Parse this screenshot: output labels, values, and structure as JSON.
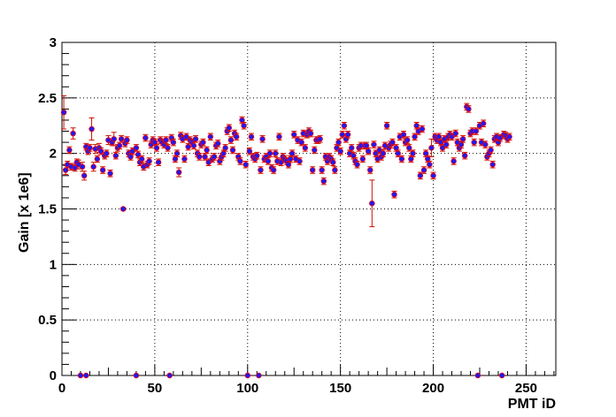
{
  "chart_data": {
    "type": "scatter",
    "title": "",
    "xlabel": "PMT iD",
    "ylabel": "Gain [x 1e6]",
    "xlim": [
      0,
      266
    ],
    "ylim": [
      0,
      3
    ],
    "x_ticks": [
      0,
      50,
      100,
      150,
      200,
      250
    ],
    "x_tick_labels": [
      "0",
      "50",
      "100",
      "150",
      "200",
      "250"
    ],
    "y_ticks": [
      0,
      0.5,
      1,
      1.5,
      2,
      2.5,
      3
    ],
    "y_tick_labels": [
      "0",
      "0.5",
      "1",
      "1.5",
      "2",
      "2.5",
      "3"
    ],
    "grid": true,
    "legend": "none",
    "colors": {
      "marker_fill": "#1a1aff",
      "marker_edge": "#e0001a",
      "error_bar": "#cc1100",
      "grid": "#000000"
    },
    "series": [
      {
        "points": [
          [
            1,
            2.37,
            0.15
          ],
          [
            2,
            1.85,
            0.04
          ],
          [
            3,
            1.9,
            0.03
          ],
          [
            4,
            2.03,
            0.03
          ],
          [
            5,
            1.88,
            0.03
          ],
          [
            6,
            2.18,
            0.05
          ],
          [
            7,
            1.87,
            0.03
          ],
          [
            8,
            1.92,
            0.03
          ],
          [
            9,
            1.9,
            0.04
          ],
          [
            11,
            1.88,
            0.04
          ],
          [
            12,
            1.8,
            0.04
          ],
          [
            13,
            2.06,
            0.03
          ],
          [
            14,
            2.02,
            0.03
          ],
          [
            15,
            2.05,
            0.03
          ],
          [
            16,
            2.22,
            0.1
          ],
          [
            17,
            1.88,
            0.04
          ],
          [
            18,
            2.04,
            0.04
          ],
          [
            19,
            1.95,
            0.03
          ],
          [
            20,
            2.05,
            0.04
          ],
          [
            21,
            2.02,
            0.03
          ],
          [
            22,
            1.85,
            0.03
          ],
          [
            23,
            1.98,
            0.03
          ],
          [
            24,
            2.0,
            0.03
          ],
          [
            25,
            2.12,
            0.04
          ],
          [
            26,
            1.82,
            0.03
          ],
          [
            27,
            2.1,
            0.03
          ],
          [
            28,
            2.13,
            0.06
          ],
          [
            29,
            1.98,
            0.03
          ],
          [
            30,
            2.05,
            0.03
          ],
          [
            31,
            2.07,
            0.03
          ],
          [
            32,
            2.13,
            0.03
          ],
          [
            33,
            1.5,
            0.01
          ],
          [
            34,
            2.09,
            0.03
          ],
          [
            35,
            2.12,
            0.03
          ],
          [
            36,
            2.0,
            0.03
          ],
          [
            37,
            1.97,
            0.03
          ],
          [
            38,
            2.02,
            0.03
          ],
          [
            40,
            2.05,
            0.03
          ],
          [
            41,
            1.99,
            0.03
          ],
          [
            42,
            1.92,
            0.03
          ],
          [
            43,
            1.95,
            0.03
          ],
          [
            44,
            1.88,
            0.03
          ],
          [
            45,
            2.14,
            0.03
          ],
          [
            46,
            1.9,
            0.03
          ],
          [
            47,
            1.93,
            0.03
          ],
          [
            48,
            2.08,
            0.03
          ],
          [
            49,
            2.12,
            0.03
          ],
          [
            50,
            2.1,
            0.03
          ],
          [
            51,
            2.05,
            0.03
          ],
          [
            52,
            1.92,
            0.03
          ],
          [
            53,
            2.12,
            0.03
          ],
          [
            54,
            2.1,
            0.03
          ],
          [
            55,
            2.08,
            0.03
          ],
          [
            56,
            2.12,
            0.03
          ],
          [
            57,
            2.05,
            0.03
          ],
          [
            59,
            2.14,
            0.03
          ],
          [
            60,
            2.1,
            0.03
          ],
          [
            61,
            1.95,
            0.03
          ],
          [
            62,
            2.0,
            0.03
          ],
          [
            63,
            1.83,
            0.04
          ],
          [
            64,
            2.16,
            0.03
          ],
          [
            65,
            2.13,
            0.03
          ],
          [
            66,
            1.95,
            0.03
          ],
          [
            67,
            2.15,
            0.03
          ],
          [
            68,
            2.06,
            0.03
          ],
          [
            69,
            2.12,
            0.03
          ],
          [
            70,
            2.1,
            0.03
          ],
          [
            71,
            2.07,
            0.03
          ],
          [
            72,
            2.13,
            0.03
          ],
          [
            73,
            2.0,
            0.03
          ],
          [
            74,
            1.97,
            0.03
          ],
          [
            75,
            2.08,
            0.03
          ],
          [
            76,
            2.1,
            0.03
          ],
          [
            77,
            1.97,
            0.03
          ],
          [
            78,
            2.03,
            0.03
          ],
          [
            79,
            1.92,
            0.03
          ],
          [
            80,
            2.15,
            0.03
          ],
          [
            81,
            1.95,
            0.03
          ],
          [
            82,
            1.97,
            0.03
          ],
          [
            83,
            2.07,
            0.03
          ],
          [
            84,
            2.09,
            0.03
          ],
          [
            85,
            1.93,
            0.03
          ],
          [
            86,
            1.97,
            0.03
          ],
          [
            87,
            2.0,
            0.03
          ],
          [
            88,
            2.05,
            0.03
          ],
          [
            89,
            2.2,
            0.03
          ],
          [
            90,
            2.23,
            0.03
          ],
          [
            91,
            2.12,
            0.03
          ],
          [
            92,
            2.03,
            0.03
          ],
          [
            93,
            2.18,
            0.03
          ],
          [
            94,
            2.15,
            0.03
          ],
          [
            95,
            1.97,
            0.03
          ],
          [
            96,
            1.93,
            0.03
          ],
          [
            97,
            2.3,
            0.03
          ],
          [
            98,
            2.25,
            0.03
          ],
          [
            99,
            1.9,
            0.03
          ],
          [
            101,
            2.02,
            0.03
          ],
          [
            102,
            2.15,
            0.03
          ],
          [
            103,
            1.97,
            0.03
          ],
          [
            104,
            1.95,
            0.03
          ],
          [
            105,
            1.98,
            0.03
          ],
          [
            107,
            1.85,
            0.03
          ],
          [
            108,
            2.13,
            0.03
          ],
          [
            109,
            1.95,
            0.03
          ],
          [
            110,
            1.97,
            0.03
          ],
          [
            111,
            1.93,
            0.03
          ],
          [
            112,
            2.0,
            0.03
          ],
          [
            113,
            1.87,
            0.03
          ],
          [
            114,
            1.85,
            0.03
          ],
          [
            115,
            2.0,
            0.03
          ],
          [
            116,
            1.93,
            0.03
          ],
          [
            117,
            2.15,
            0.03
          ],
          [
            118,
            1.92,
            0.03
          ],
          [
            119,
            1.97,
            0.03
          ],
          [
            120,
            1.95,
            0.03
          ],
          [
            121,
            1.93,
            0.03
          ],
          [
            122,
            1.9,
            0.03
          ],
          [
            123,
            1.95,
            0.03
          ],
          [
            124,
            2.0,
            0.03
          ],
          [
            125,
            2.17,
            0.03
          ],
          [
            126,
            1.95,
            0.03
          ],
          [
            127,
            2.12,
            0.03
          ],
          [
            128,
            1.93,
            0.03
          ],
          [
            129,
            2.1,
            0.03
          ],
          [
            130,
            2.18,
            0.03
          ],
          [
            131,
            2.05,
            0.03
          ],
          [
            132,
            2.17,
            0.03
          ],
          [
            133,
            2.2,
            0.03
          ],
          [
            134,
            2.18,
            0.03
          ],
          [
            135,
            1.85,
            0.03
          ],
          [
            136,
            2.03,
            0.03
          ],
          [
            137,
            2.12,
            0.03
          ],
          [
            138,
            2.12,
            0.03
          ],
          [
            139,
            2.13,
            0.03
          ],
          [
            140,
            1.85,
            0.03
          ],
          [
            141,
            1.75,
            0.03
          ],
          [
            142,
            1.97,
            0.03
          ],
          [
            143,
            1.93,
            0.03
          ],
          [
            144,
            1.97,
            0.03
          ],
          [
            145,
            1.95,
            0.03
          ],
          [
            146,
            1.92,
            0.03
          ],
          [
            147,
            1.85,
            0.03
          ],
          [
            148,
            2.05,
            0.03
          ],
          [
            149,
            2.1,
            0.03
          ],
          [
            150,
            2.02,
            0.03
          ],
          [
            151,
            2.17,
            0.03
          ],
          [
            152,
            2.25,
            0.03
          ],
          [
            153,
            2.13,
            0.03
          ],
          [
            154,
            2.17,
            0.03
          ],
          [
            155,
            2.0,
            0.03
          ],
          [
            156,
            2.05,
            0.03
          ],
          [
            157,
            1.98,
            0.03
          ],
          [
            158,
            1.93,
            0.03
          ],
          [
            159,
            1.9,
            0.03
          ],
          [
            160,
            2.05,
            0.03
          ],
          [
            161,
            2.07,
            0.03
          ],
          [
            162,
            1.95,
            0.03
          ],
          [
            163,
            2.07,
            0.03
          ],
          [
            164,
            2.07,
            0.03
          ],
          [
            165,
            2.02,
            0.03
          ],
          [
            166,
            1.85,
            0.03
          ],
          [
            167,
            1.55,
            0.21
          ],
          [
            168,
            2.08,
            0.03
          ],
          [
            169,
            2.0,
            0.03
          ],
          [
            170,
            1.95,
            0.03
          ],
          [
            171,
            2.03,
            0.03
          ],
          [
            172,
            1.97,
            0.03
          ],
          [
            173,
            2.0,
            0.03
          ],
          [
            174,
            2.07,
            0.03
          ],
          [
            175,
            2.25,
            0.03
          ],
          [
            176,
            2.05,
            0.03
          ],
          [
            177,
            2.08,
            0.03
          ],
          [
            178,
            2.1,
            0.03
          ],
          [
            179,
            1.63,
            0.03
          ],
          [
            180,
            2.05,
            0.03
          ],
          [
            181,
            2.0,
            0.03
          ],
          [
            182,
            2.15,
            0.03
          ],
          [
            183,
            1.95,
            0.03
          ],
          [
            184,
            2.17,
            0.03
          ],
          [
            185,
            2.1,
            0.03
          ],
          [
            186,
            2.12,
            0.03
          ],
          [
            187,
            2.05,
            0.03
          ],
          [
            188,
            1.95,
            0.03
          ],
          [
            189,
            2.0,
            0.03
          ],
          [
            190,
            2.15,
            0.03
          ],
          [
            191,
            2.25,
            0.03
          ],
          [
            192,
            2.2,
            0.03
          ],
          [
            193,
            1.8,
            0.03
          ],
          [
            194,
            2.22,
            0.03
          ],
          [
            195,
            1.85,
            0.03
          ],
          [
            196,
            2.0,
            0.03
          ],
          [
            197,
            1.95,
            0.03
          ],
          [
            198,
            1.9,
            0.03
          ],
          [
            199,
            2.05,
            0.08
          ],
          [
            200,
            1.8,
            0.03
          ],
          [
            201,
            2.15,
            0.03
          ],
          [
            202,
            2.12,
            0.03
          ],
          [
            203,
            2.15,
            0.03
          ],
          [
            204,
            2.1,
            0.03
          ],
          [
            205,
            2.05,
            0.03
          ],
          [
            206,
            2.13,
            0.03
          ],
          [
            207,
            2.08,
            0.03
          ],
          [
            208,
            2.15,
            0.03
          ],
          [
            209,
            2.17,
            0.03
          ],
          [
            210,
            2.15,
            0.03
          ],
          [
            211,
            1.93,
            0.03
          ],
          [
            212,
            2.18,
            0.03
          ],
          [
            213,
            2.1,
            0.03
          ],
          [
            214,
            2.05,
            0.03
          ],
          [
            215,
            2.08,
            0.03
          ],
          [
            216,
            2.13,
            0.03
          ],
          [
            217,
            1.98,
            0.03
          ],
          [
            218,
            2.42,
            0.03
          ],
          [
            219,
            2.4,
            0.03
          ],
          [
            220,
            2.18,
            0.03
          ],
          [
            221,
            2.2,
            0.03
          ],
          [
            222,
            2.1,
            0.03
          ],
          [
            223,
            2.2,
            0.03
          ],
          [
            225,
            2.25,
            0.03
          ],
          [
            226,
            2.1,
            0.03
          ],
          [
            227,
            2.27,
            0.03
          ],
          [
            228,
            2.08,
            0.03
          ],
          [
            229,
            1.97,
            0.03
          ],
          [
            230,
            2.0,
            0.03
          ],
          [
            231,
            2.03,
            0.03
          ],
          [
            232,
            1.9,
            0.03
          ],
          [
            233,
            2.13,
            0.03
          ],
          [
            234,
            2.15,
            0.03
          ],
          [
            235,
            2.1,
            0.03
          ],
          [
            236,
            2.14,
            0.03
          ],
          [
            238,
            2.17,
            0.03
          ],
          [
            239,
            2.16,
            0.03
          ],
          [
            240,
            2.13,
            0.03
          ],
          [
            241,
            2.15,
            0.03
          ],
          [
            10,
            0,
            0
          ],
          [
            13,
            0,
            0
          ],
          [
            40,
            0,
            0
          ],
          [
            58,
            0,
            0
          ],
          [
            100,
            0,
            0
          ],
          [
            106,
            0,
            0
          ],
          [
            224,
            0,
            0
          ],
          [
            237,
            0,
            0
          ]
        ]
      }
    ]
  }
}
